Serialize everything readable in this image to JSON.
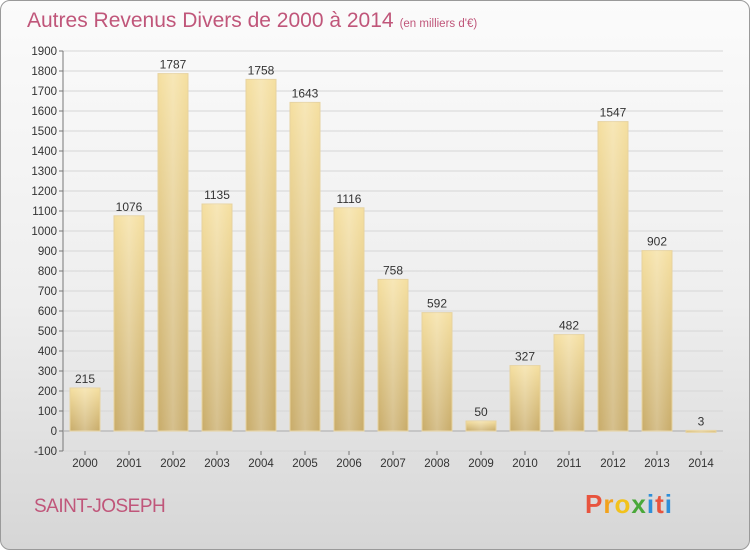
{
  "header": {
    "title": "Autres Revenus Divers de 2000 à 2014",
    "unit": "(en milliers d'€)"
  },
  "footer": {
    "city": "SAINT-JOSEPH",
    "logo_text": "Proxiti",
    "logo_colors": [
      "#e8543e",
      "#f2a21c",
      "#f2c21c",
      "#4aa83a",
      "#2f8fd8",
      "#e8543e",
      "#2f8fd8"
    ]
  },
  "colors": {
    "title": "#c0567a",
    "bar_fill_light": "#f3db98",
    "bar_fill_dark": "#c4a866",
    "grid": "#d6d6d6",
    "axis_text": "#333333"
  },
  "chart_data": {
    "type": "bar",
    "title": "Autres Revenus Divers de 2000 à 2014",
    "xlabel": "",
    "ylabel": "",
    "categories": [
      "2000",
      "2001",
      "2002",
      "2003",
      "2004",
      "2005",
      "2006",
      "2007",
      "2008",
      "2009",
      "2010",
      "2011",
      "2012",
      "2013",
      "2014"
    ],
    "values": [
      215,
      1076,
      1787,
      1135,
      1758,
      1643,
      1116,
      758,
      592,
      50,
      327,
      482,
      1547,
      902,
      3
    ],
    "ylim": [
      -100,
      1900
    ],
    "yticks": [
      -100,
      0,
      100,
      200,
      300,
      400,
      500,
      600,
      700,
      800,
      900,
      1000,
      1100,
      1200,
      1300,
      1400,
      1500,
      1600,
      1700,
      1800,
      1900
    ],
    "grid": true,
    "legend": "none"
  }
}
